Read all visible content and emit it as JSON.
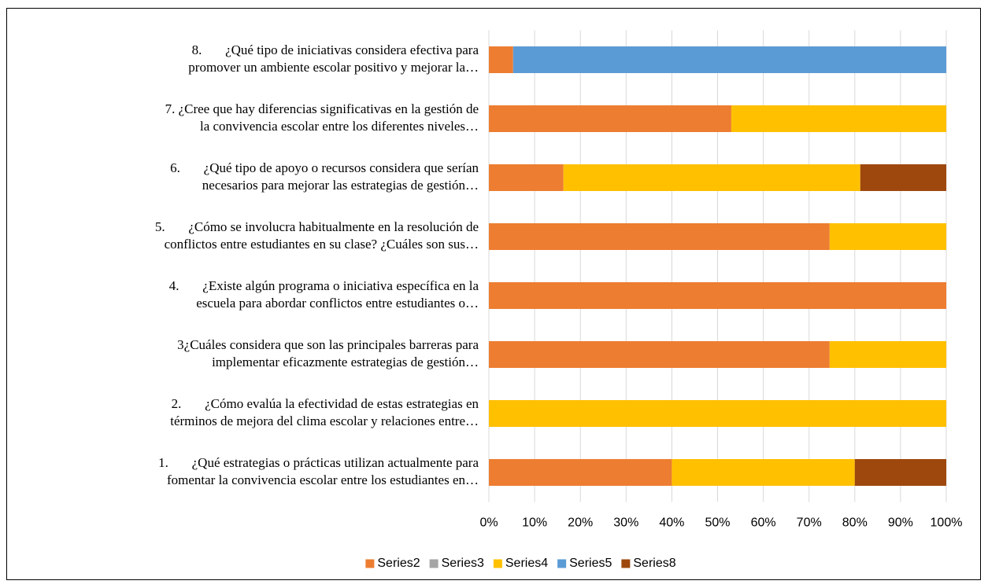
{
  "chart_data": {
    "type": "stacked_bar_horizontal",
    "categories": [
      [
        "1.       ¿Qué estrategias o prácticas utilizan actualmente para",
        "fomentar la convivencia escolar entre los estudiantes en…"
      ],
      [
        "2.       ¿Cómo evalúa la efectividad de estas estrategias en",
        "términos de mejora del clima escolar y relaciones entre…"
      ],
      [
        "3¿Cuáles considera que son las principales barreras para",
        "implementar eficazmente estrategias de gestión…"
      ],
      [
        "4.       ¿Existe algún programa o iniciativa específica en la",
        "escuela para abordar conflictos entre estudiantes o…"
      ],
      [
        "5.       ¿Cómo se involucra habitualmente en la resolución de",
        "conflictos entre estudiantes en su clase? ¿Cuáles son sus…"
      ],
      [
        "6.       ¿Qué tipo de apoyo o recursos considera que serían",
        "necesarios para mejorar las estrategias de gestión…"
      ],
      [
        "7. ¿Cree que hay diferencias significativas en la gestión de",
        "la convivencia escolar entre los diferentes niveles…"
      ],
      [
        "8.       ¿Qué tipo de iniciativas considera efectiva para",
        "promover un ambiente escolar positivo y mejorar la…"
      ]
    ],
    "series": [
      {
        "name": "Series2",
        "color": "#ed7d31",
        "values": [
          40,
          0,
          74.5,
          100,
          74.5,
          16.3,
          53,
          5.3
        ]
      },
      {
        "name": "Series3",
        "color": "#a5a5a5",
        "values": [
          0,
          0,
          0,
          0,
          0,
          0,
          0,
          0
        ]
      },
      {
        "name": "Series4",
        "color": "#ffc000",
        "values": [
          40,
          100,
          25.5,
          0,
          25.5,
          64.9,
          47,
          0
        ]
      },
      {
        "name": "Series5",
        "color": "#5b9bd5",
        "values": [
          0,
          0,
          0,
          0,
          0,
          0,
          0,
          94.7
        ]
      },
      {
        "name": "Series8",
        "color": "#9e480e",
        "values": [
          20,
          0,
          0,
          0,
          0,
          18.8,
          0,
          0
        ]
      }
    ],
    "xlim": [
      0,
      100
    ],
    "xticks": [
      {
        "value": 0,
        "label": "0%"
      },
      {
        "value": 10,
        "label": "10%"
      },
      {
        "value": 20,
        "label": "20%"
      },
      {
        "value": 30,
        "label": "30%"
      },
      {
        "value": 40,
        "label": "40%"
      },
      {
        "value": 50,
        "label": "50%"
      },
      {
        "value": 60,
        "label": "60%"
      },
      {
        "value": 70,
        "label": "70%"
      },
      {
        "value": 80,
        "label": "80%"
      },
      {
        "value": 90,
        "label": "90%"
      },
      {
        "value": 100,
        "label": "100%"
      }
    ],
    "grid": true,
    "legend": "bottom"
  }
}
